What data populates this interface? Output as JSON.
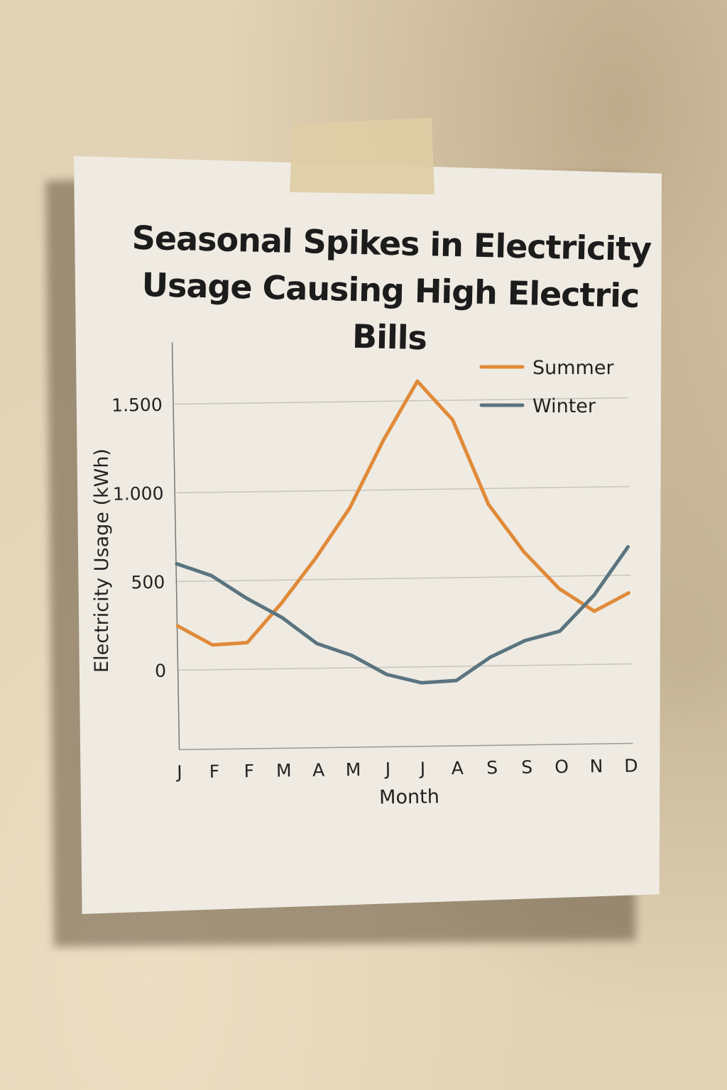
{
  "chart_data": {
    "type": "line",
    "title": "Seasonal Spikes in Electricity\nUsage Causing High Electric Bills",
    "xlabel": "Month",
    "ylabel": "Electricity Usage (kWh)",
    "categories": [
      "J",
      "F",
      "F",
      "M",
      "A",
      "M",
      "J",
      "J",
      "A",
      "S",
      "S",
      "O",
      "N",
      "D"
    ],
    "y_ticks": [
      {
        "value": 0,
        "label": "0"
      },
      {
        "value": 500,
        "label": "500"
      },
      {
        "value": 1000,
        "label": "1.000"
      },
      {
        "value": 1500,
        "label": "1.500"
      }
    ],
    "ylim": [
      -400,
      1800
    ],
    "grid": true,
    "legend_position": "top-right",
    "series": [
      {
        "name": "Summer",
        "color": "#e08a3a",
        "values": [
          250,
          140,
          150,
          370,
          620,
          900,
          1280,
          1610,
          1390,
          910,
          640,
          430,
          300,
          400
        ]
      },
      {
        "name": "Winter",
        "color": "#5a7480",
        "values": [
          600,
          530,
          400,
          290,
          140,
          70,
          -40,
          -90,
          -80,
          50,
          140,
          190,
          390,
          660
        ]
      }
    ]
  }
}
